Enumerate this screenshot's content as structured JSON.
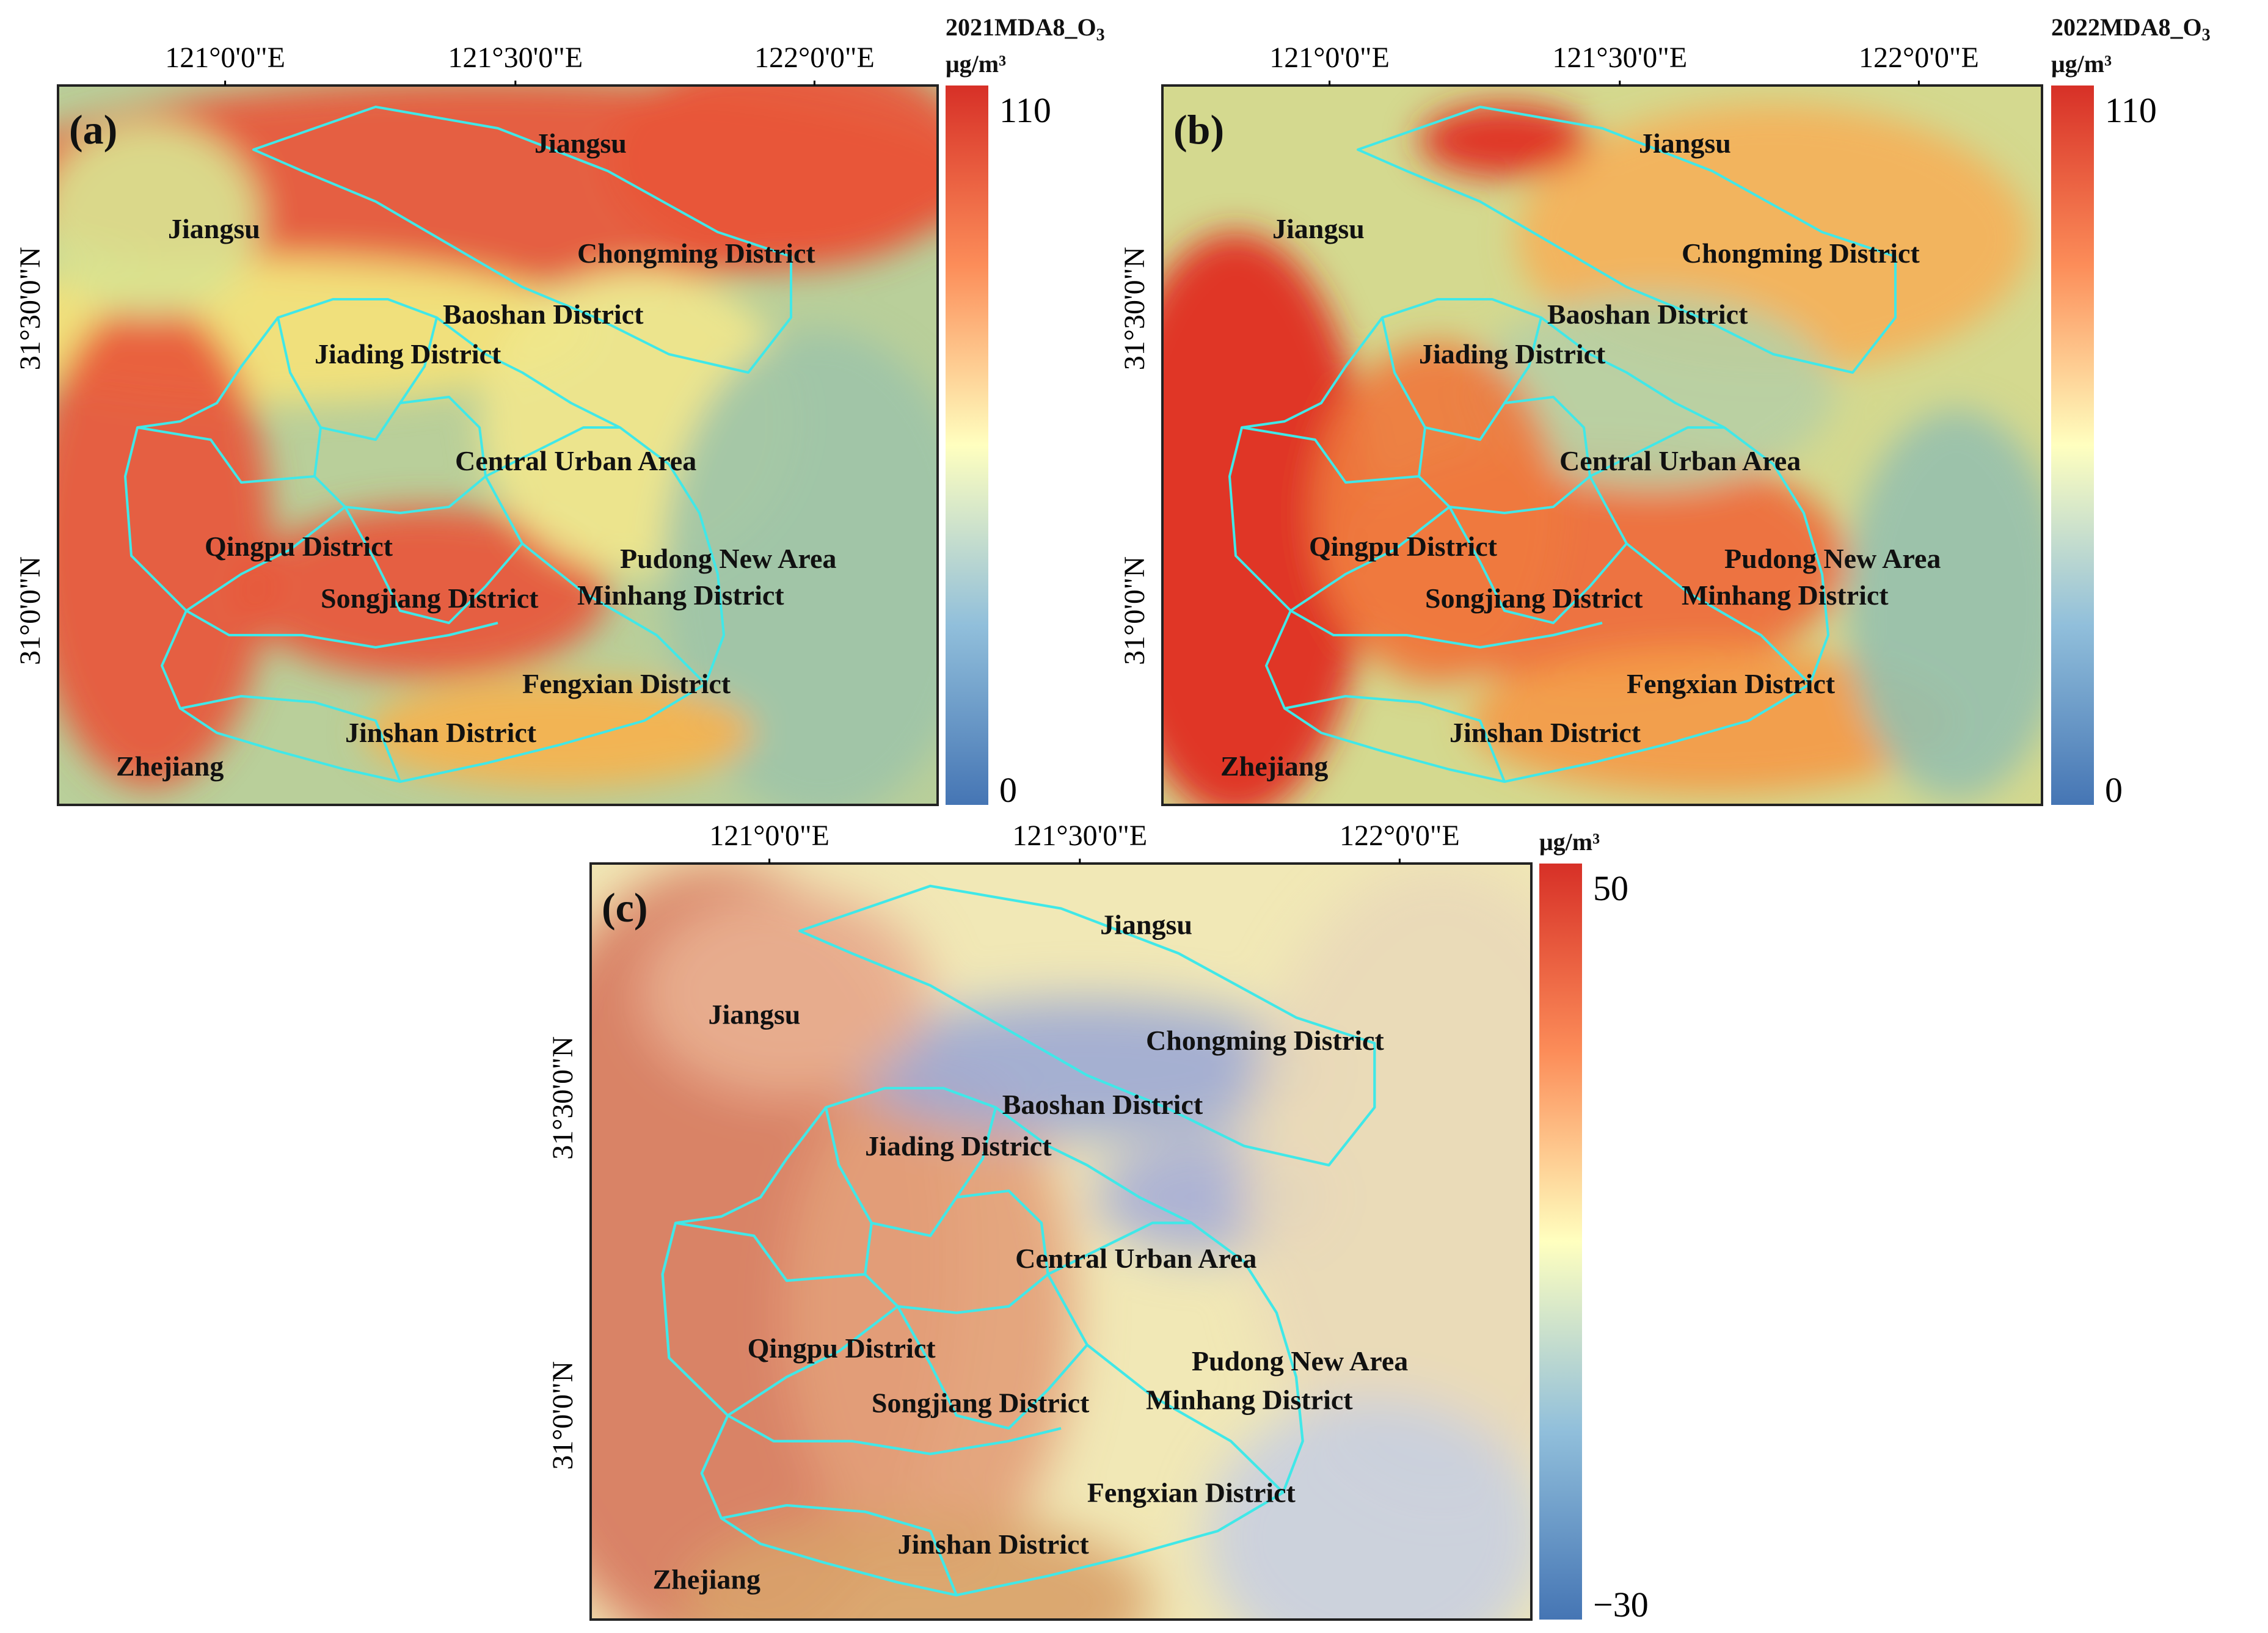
{
  "panels": [
    {
      "id": "a",
      "tag": "(a)",
      "legend_title": "2021MDA8_O",
      "legend_sub": "3",
      "legend_unit": "μg/m³",
      "legend_max": "110",
      "legend_min": "0",
      "lon_ticks": [
        "121°0'0\"E",
        "121°30'0\"E",
        "122°0'0\"E"
      ],
      "lat_ticks": [
        "31°30'0\"N",
        "31°0'0\"N"
      ],
      "regions": [
        "Jiangsu",
        "Chongming District",
        "Jiangsu",
        "Baoshan District",
        "Jiading District",
        "Central Urban Area",
        "Qingpu District",
        "Pudong New Area",
        "Songjiang District",
        "Minhang District",
        "Fengxian District",
        "Jinshan District",
        "Zhejiang"
      ]
    },
    {
      "id": "b",
      "tag": "(b)",
      "legend_title": "2022MDA8_O",
      "legend_sub": "3",
      "legend_unit": "μg/m³",
      "legend_max": "110",
      "legend_min": "0",
      "lon_ticks": [
        "121°0'0\"E",
        "121°30'0\"E",
        "122°0'0\"E"
      ],
      "lat_ticks": [
        "31°30'0\"N",
        "31°0'0\"N"
      ],
      "regions": [
        "Jiangsu",
        "Chongming District",
        "Jiangsu",
        "Baoshan District",
        "Jiading District",
        "Central Urban Area",
        "Qingpu District",
        "Pudong New Area",
        "Songjiang District",
        "Minhang District",
        "Fengxian District",
        "Jinshan District",
        "Zhejiang"
      ]
    },
    {
      "id": "c",
      "tag": "(c)",
      "legend_title": "",
      "legend_sub": "",
      "legend_unit": "μg/m³",
      "legend_max": "50",
      "legend_min": "−30",
      "lon_ticks": [
        "121°0'0\"E",
        "121°30'0\"E",
        "122°0'0\"E"
      ],
      "lat_ticks": [
        "31°30'0\"N",
        "31°0'0\"N"
      ],
      "regions": [
        "Jiangsu",
        "Chongming District",
        "Jiangsu",
        "Baoshan District",
        "Jiading District",
        "Central Urban Area",
        "Qingpu District",
        "Pudong New Area",
        "Songjiang District",
        "Minhang District",
        "Fengxian District",
        "Jinshan District",
        "Zhejiang"
      ]
    }
  ],
  "colors": {
    "boundary": "#40e8e8",
    "high": "#d7301f",
    "mid": "#ffffbf",
    "low": "#4575b4"
  }
}
